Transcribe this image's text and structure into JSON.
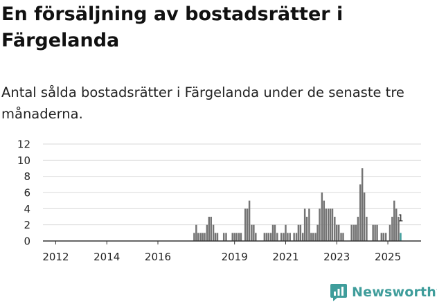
{
  "header": {
    "title": "En försäljning av bostadsrätter i Färgelanda",
    "subtitle": "Antal sålda bostadsrätter i Färgelanda under de senaste tre månaderna."
  },
  "brand": {
    "name": "Newsworthy",
    "logo_icon": "newsworthy-logo-icon",
    "color": "#3f9d9b"
  },
  "chart_data": {
    "type": "bar",
    "title": "En försäljning av bostadsrätter i Färgelanda",
    "subtitle": "Antal sålda bostadsrätter i Färgelanda under de senaste tre månaderna.",
    "xlabel": "",
    "ylabel": "",
    "ylim": [
      0,
      12
    ],
    "yticks": [
      0,
      2,
      4,
      6,
      8,
      10,
      12
    ],
    "xlim": [
      2011.5,
      2026.3
    ],
    "xticks": [
      {
        "value": 2012,
        "label": "2012"
      },
      {
        "value": 2014,
        "label": "2014"
      },
      {
        "value": 2016,
        "label": "2016"
      },
      {
        "value": 2019,
        "label": "2019"
      },
      {
        "value": 2021,
        "label": "2021"
      },
      {
        "value": 2023,
        "label": "2023"
      },
      {
        "value": 2025,
        "label": "2025"
      }
    ],
    "grid": true,
    "bar_color": "#737373",
    "highlight_color": "#3f9d9b",
    "bar_width_months": 0.8,
    "data_labels": [
      {
        "label": "1",
        "x": 2025.5
      }
    ],
    "series": [
      {
        "name": "Sålda bostadsrätter",
        "x": [
          2017.42,
          2017.5,
          2017.58,
          2017.67,
          2017.75,
          2017.83,
          2017.92,
          2018.0,
          2018.08,
          2018.17,
          2018.25,
          2018.33,
          2018.42,
          2018.5,
          2018.58,
          2018.67,
          2018.75,
          2018.83,
          2018.92,
          2019.0,
          2019.08,
          2019.17,
          2019.25,
          2019.33,
          2019.42,
          2019.5,
          2019.58,
          2019.67,
          2019.75,
          2019.83,
          2019.92,
          2020.0,
          2020.08,
          2020.17,
          2020.25,
          2020.33,
          2020.42,
          2020.5,
          2020.58,
          2020.67,
          2020.75,
          2020.83,
          2020.92,
          2021.0,
          2021.08,
          2021.17,
          2021.25,
          2021.33,
          2021.42,
          2021.5,
          2021.58,
          2021.67,
          2021.75,
          2021.83,
          2021.92,
          2022.0,
          2022.08,
          2022.17,
          2022.25,
          2022.33,
          2022.42,
          2022.5,
          2022.58,
          2022.67,
          2022.75,
          2022.83,
          2022.92,
          2023.0,
          2023.08,
          2023.17,
          2023.25,
          2023.33,
          2023.42,
          2023.5,
          2023.58,
          2023.67,
          2023.75,
          2023.83,
          2023.92,
          2024.0,
          2024.08,
          2024.17,
          2024.25,
          2024.33,
          2024.42,
          2024.5,
          2024.58,
          2024.67,
          2024.75,
          2024.83,
          2024.92,
          2025.0,
          2025.08,
          2025.17,
          2025.25,
          2025.33,
          2025.42,
          2025.5
        ],
        "values": [
          1,
          2,
          1,
          1,
          1,
          1,
          2,
          3,
          3,
          2,
          1,
          1,
          0,
          0,
          1,
          1,
          0,
          0,
          1,
          1,
          1,
          1,
          1,
          0,
          4,
          4,
          5,
          2,
          2,
          1,
          0,
          0,
          0,
          1,
          1,
          1,
          1,
          2,
          2,
          1,
          0,
          1,
          1,
          2,
          1,
          1,
          0,
          1,
          1,
          2,
          2,
          1,
          4,
          3,
          4,
          1,
          1,
          1,
          2,
          4,
          6,
          5,
          4,
          4,
          4,
          4,
          3,
          2,
          2,
          1,
          1,
          0,
          0,
          0,
          2,
          2,
          2,
          3,
          7,
          9,
          6,
          3,
          0,
          0,
          2,
          2,
          2,
          0,
          1,
          1,
          1,
          0,
          2,
          3,
          5,
          4,
          3,
          1
        ]
      }
    ]
  }
}
